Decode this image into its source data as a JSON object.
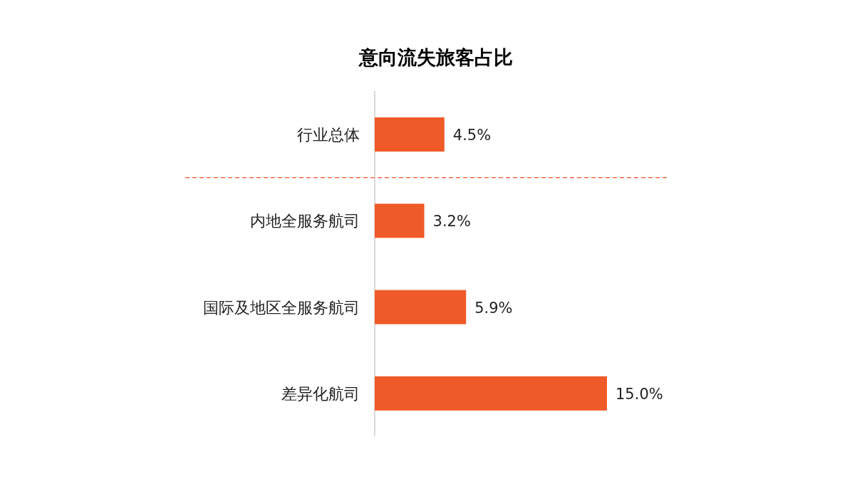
{
  "chart_data": {
    "type": "bar",
    "orientation": "horizontal",
    "title": "意向流失旅客占比",
    "categories": [
      "行业总体",
      "内地全服务航司",
      "国际及地区全服务航司",
      "差异化航司"
    ],
    "values": [
      4.5,
      3.2,
      5.9,
      15.0
    ],
    "value_labels": [
      "4.5%",
      "3.2%",
      "5.9%",
      "15.0%"
    ],
    "color": "#f05a28"
  }
}
